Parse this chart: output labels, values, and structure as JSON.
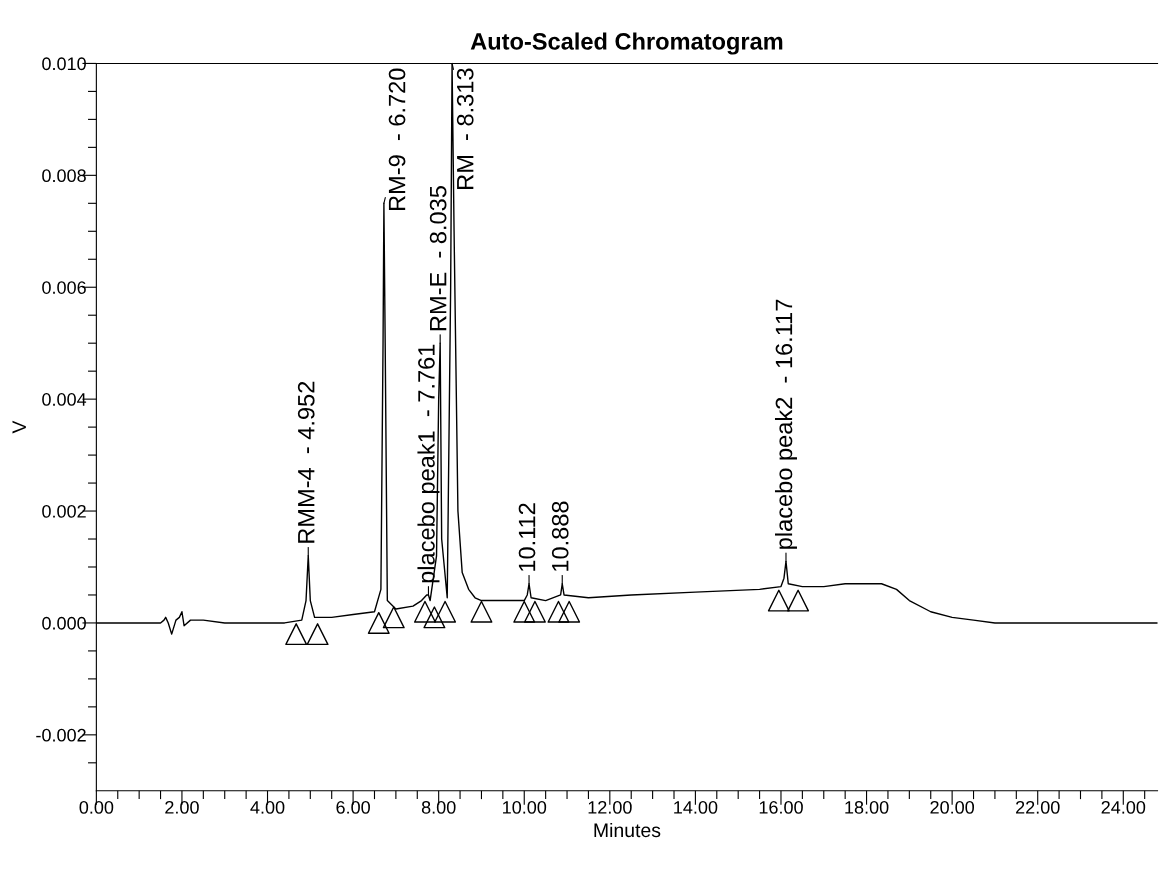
{
  "chart_data": {
    "type": "line",
    "title": "Auto-Scaled Chromatogram",
    "xlabel": "Minutes",
    "ylabel": "V",
    "xlim": [
      0,
      24.8
    ],
    "ylim": [
      -0.003,
      0.01
    ],
    "xticks": [
      {
        "value": 0,
        "label": "0.00"
      },
      {
        "value": 0.5,
        "label": null
      },
      {
        "value": 1,
        "label": null
      },
      {
        "value": 1.5,
        "label": null
      },
      {
        "value": 2,
        "label": "2.00"
      },
      {
        "value": 2.5,
        "label": null
      },
      {
        "value": 3,
        "label": null
      },
      {
        "value": 3.5,
        "label": null
      },
      {
        "value": 4,
        "label": "4.00"
      },
      {
        "value": 4.5,
        "label": null
      },
      {
        "value": 5,
        "label": null
      },
      {
        "value": 5.5,
        "label": null
      },
      {
        "value": 6,
        "label": "6.00"
      },
      {
        "value": 6.5,
        "label": null
      },
      {
        "value": 7,
        "label": null
      },
      {
        "value": 7.5,
        "label": null
      },
      {
        "value": 8,
        "label": "8.00"
      },
      {
        "value": 8.5,
        "label": null
      },
      {
        "value": 9,
        "label": null
      },
      {
        "value": 9.5,
        "label": null
      },
      {
        "value": 10,
        "label": "10.00"
      },
      {
        "value": 10.5,
        "label": null
      },
      {
        "value": 11,
        "label": null
      },
      {
        "value": 11.5,
        "label": null
      },
      {
        "value": 12,
        "label": "12.00"
      },
      {
        "value": 12.5,
        "label": null
      },
      {
        "value": 13,
        "label": null
      },
      {
        "value": 13.5,
        "label": null
      },
      {
        "value": 14,
        "label": "14.00"
      },
      {
        "value": 14.5,
        "label": null
      },
      {
        "value": 15,
        "label": null
      },
      {
        "value": 15.5,
        "label": null
      },
      {
        "value": 16,
        "label": "16.00"
      },
      {
        "value": 16.5,
        "label": null
      },
      {
        "value": 17,
        "label": null
      },
      {
        "value": 17.5,
        "label": null
      },
      {
        "value": 18,
        "label": "18.00"
      },
      {
        "value": 18.5,
        "label": null
      },
      {
        "value": 19,
        "label": null
      },
      {
        "value": 19.5,
        "label": null
      },
      {
        "value": 20,
        "label": "20.00"
      },
      {
        "value": 20.5,
        "label": null
      },
      {
        "value": 21,
        "label": null
      },
      {
        "value": 21.5,
        "label": null
      },
      {
        "value": 22,
        "label": "22.00"
      },
      {
        "value": 22.5,
        "label": null
      },
      {
        "value": 23,
        "label": null
      },
      {
        "value": 23.5,
        "label": null
      },
      {
        "value": 24,
        "label": "24.00"
      },
      {
        "value": 24.5,
        "label": null
      }
    ],
    "yticks": [
      {
        "value": -0.0025,
        "label": null
      },
      {
        "value": -0.002,
        "label": "-0.002"
      },
      {
        "value": -0.0015,
        "label": null
      },
      {
        "value": -0.001,
        "label": null
      },
      {
        "value": -0.0005,
        "label": null
      },
      {
        "value": 0,
        "label": "0.000"
      },
      {
        "value": 0.0005,
        "label": null
      },
      {
        "value": 0.001,
        "label": null
      },
      {
        "value": 0.0015,
        "label": null
      },
      {
        "value": 0.002,
        "label": "0.002"
      },
      {
        "value": 0.0025,
        "label": null
      },
      {
        "value": 0.003,
        "label": null
      },
      {
        "value": 0.0035,
        "label": null
      },
      {
        "value": 0.004,
        "label": "0.004"
      },
      {
        "value": 0.0045,
        "label": null
      },
      {
        "value": 0.005,
        "label": null
      },
      {
        "value": 0.0055,
        "label": null
      },
      {
        "value": 0.006,
        "label": "0.006"
      },
      {
        "value": 0.0065,
        "label": null
      },
      {
        "value": 0.007,
        "label": null
      },
      {
        "value": 0.0075,
        "label": null
      },
      {
        "value": 0.008,
        "label": "0.008"
      },
      {
        "value": 0.0085,
        "label": null
      },
      {
        "value": 0.009,
        "label": null
      },
      {
        "value": 0.0095,
        "label": null
      },
      {
        "value": 0.01,
        "label": "0.010"
      }
    ],
    "grid": false,
    "legend": false,
    "series": [
      {
        "color": "#000000",
        "x": [
          0,
          1.5,
          1.58,
          1.62,
          1.68,
          1.76,
          1.86,
          1.94,
          2.0,
          2.05,
          2.2,
          2.5,
          3.0,
          4.0,
          4.4,
          4.8,
          4.9,
          4.952,
          5.0,
          5.1,
          5.5,
          6.0,
          6.5,
          6.65,
          6.7,
          6.72,
          6.75,
          6.8,
          7.0,
          7.4,
          7.6,
          7.72,
          7.761,
          7.8,
          7.95,
          8.0,
          8.035,
          8.07,
          8.2,
          8.28,
          8.313,
          8.36,
          8.45,
          8.55,
          8.7,
          8.85,
          9.0,
          9.5,
          10.0,
          10.07,
          10.112,
          10.16,
          10.5,
          10.85,
          10.888,
          10.93,
          11.5,
          12.5,
          14.0,
          15.5,
          16.0,
          16.07,
          16.117,
          16.17,
          16.5,
          17.0,
          17.5,
          18.0,
          18.35,
          18.7,
          19.0,
          19.5,
          20.0,
          20.5,
          21.0,
          22.0,
          23.0,
          24.8
        ],
        "values": [
          0,
          0,
          5e-05,
          0.0001,
          0,
          -0.0002,
          5e-05,
          0.0001,
          0.0002,
          -5e-05,
          5e-05,
          5e-05,
          0,
          0,
          0,
          5e-05,
          0.0004,
          0.0012,
          0.0004,
          0.0001,
          0.0001,
          0.00015,
          0.0002,
          0.0006,
          0.005,
          0.0075,
          0.005,
          0.0004,
          0.00025,
          0.0003,
          0.0004,
          0.0005,
          0.0005,
          0.0004,
          0.0012,
          0.004,
          0.005,
          0.0015,
          0.00045,
          0.006,
          0.01,
          0.007,
          0.002,
          0.0009,
          0.0006,
          0.00045,
          0.0004,
          0.0004,
          0.0004,
          0.0005,
          0.0007,
          0.00045,
          0.0004,
          0.0005,
          0.0007,
          0.0005,
          0.00045,
          0.0005,
          0.00055,
          0.0006,
          0.00065,
          0.0008,
          0.0011,
          0.0007,
          0.00065,
          0.00065,
          0.0007,
          0.0007,
          0.0007,
          0.0006,
          0.0004,
          0.0002,
          0.0001,
          5e-05,
          0,
          0,
          0,
          0
        ]
      },
      {
        "type": "scatter",
        "marker": "triangle",
        "color": "#000000",
        "x": [
          4.67,
          5.17,
          6.6,
          6.95,
          7.68,
          7.9,
          8.15,
          9.0,
          10.0,
          10.25,
          10.8,
          11.05,
          15.95,
          16.4
        ],
        "values": [
          -0.0002,
          -0.0002,
          0.0,
          0.0001,
          0.0002,
          0.0001,
          0.0002,
          0.0002,
          0.0002,
          0.0002,
          0.0002,
          0.0002,
          0.0004,
          0.0004
        ]
      }
    ],
    "annotations": [
      {
        "text": "RMM-4  - 4.952",
        "x": 4.952,
        "y": 0.0012
      },
      {
        "text": "RM-9  - 6.720",
        "x": 6.72,
        "y": 0.0075
      },
      {
        "text": "placebo peak1  - 7.761",
        "x": 7.761,
        "y": 0.0005
      },
      {
        "text": "RM-E  - 8.035",
        "x": 8.035,
        "y": 0.005
      },
      {
        "text": "RM  - 8.313",
        "x": 8.313,
        "y": 0.01
      },
      {
        "text": "10.112",
        "x": 10.112,
        "y": 0.0007
      },
      {
        "text": "10.888",
        "x": 10.888,
        "y": 0.0007
      },
      {
        "text": "placebo peak2  - 16.117",
        "x": 16.117,
        "y": 0.0011
      }
    ]
  }
}
